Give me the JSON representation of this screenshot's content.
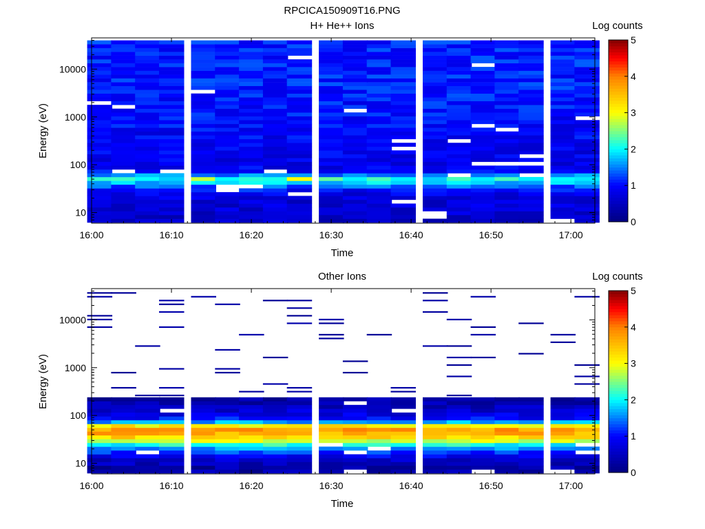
{
  "figure": {
    "title": "RPCICA150909T16.PNG"
  },
  "chart_data": [
    {
      "type": "heatmap",
      "title": "H+ He++ Ions",
      "xlabel": "Time",
      "ylabel": "Energy (eV)",
      "x_scale": "time",
      "y_scale": "log",
      "xlim": [
        "16:00",
        "17:03"
      ],
      "ylim": [
        6,
        45000
      ],
      "x_ticks": [
        "16:00",
        "16:10",
        "16:20",
        "16:30",
        "16:40",
        "16:50",
        "17:00"
      ],
      "y_ticks": [
        "10",
        "100",
        "1000",
        "10000"
      ],
      "time_bins": [
        "16:01",
        "16:04",
        "16:07",
        "16:10",
        "16:14",
        "16:17",
        "16:20",
        "16:23",
        "16:26",
        "16:30",
        "16:33",
        "16:36",
        "16:39",
        "16:43",
        "16:46",
        "16:49",
        "16:52",
        "16:55",
        "16:59",
        "17:02"
      ],
      "energy_profile": [
        {
          "energy": 8,
          "log_counts": 0.6
        },
        {
          "energy": 12,
          "log_counts": 0.7
        },
        {
          "energy": 17,
          "log_counts": 0.7
        },
        {
          "energy": 24,
          "log_counts": 0.8
        },
        {
          "energy": 32,
          "log_counts": 1.1
        },
        {
          "energy": 42,
          "log_counts": 1.8
        },
        {
          "energy": 52,
          "log_counts": 2.1
        },
        {
          "energy": 70,
          "log_counts": 1.0
        },
        {
          "energy": 100,
          "log_counts": 0.8
        },
        {
          "energy": 300,
          "log_counts": 0.9
        },
        {
          "energy": 1000,
          "log_counts": 1.0
        },
        {
          "energy": 5000,
          "log_counts": 1.1
        },
        {
          "energy": 20000,
          "log_counts": 1.1
        },
        {
          "energy": 40000,
          "log_counts": 1.1
        }
      ],
      "highlights": [
        {
          "time": "16:13",
          "energy": 52,
          "log_counts": 2.8
        },
        {
          "time": "16:26",
          "energy": 52,
          "log_counts": 3.0
        },
        {
          "time": "16:30",
          "energy": 52,
          "log_counts": 2.4
        }
      ],
      "colorbar": {
        "label": "Log counts",
        "range": [
          0,
          5
        ],
        "ticks": [
          "0",
          "1",
          "2",
          "3",
          "4",
          "5"
        ]
      }
    },
    {
      "type": "heatmap",
      "title": "Other Ions",
      "xlabel": "Time",
      "ylabel": "Energy (eV)",
      "x_scale": "time",
      "y_scale": "log",
      "xlim": [
        "16:00",
        "17:03"
      ],
      "ylim": [
        6,
        45000
      ],
      "x_ticks": [
        "16:00",
        "16:10",
        "16:20",
        "16:30",
        "16:40",
        "16:50",
        "17:00"
      ],
      "y_ticks": [
        "10",
        "100",
        "1000",
        "10000"
      ],
      "time_bins": [
        "16:01",
        "16:04",
        "16:07",
        "16:10",
        "16:14",
        "16:17",
        "16:20",
        "16:23",
        "16:26",
        "16:30",
        "16:33",
        "16:36",
        "16:39",
        "16:43",
        "16:46",
        "16:49",
        "16:52",
        "16:55",
        "16:59",
        "17:02"
      ],
      "energy_profile": [
        {
          "energy": 8,
          "log_counts": 0.3
        },
        {
          "energy": 12,
          "log_counts": 0.6
        },
        {
          "energy": 17,
          "log_counts": 1.2
        },
        {
          "energy": 24,
          "log_counts": 2.0
        },
        {
          "energy": 30,
          "log_counts": 2.9
        },
        {
          "energy": 38,
          "log_counts": 3.5
        },
        {
          "energy": 48,
          "log_counts": 3.8
        },
        {
          "energy": 58,
          "log_counts": 3.6
        },
        {
          "energy": 70,
          "log_counts": 1.8
        },
        {
          "energy": 90,
          "log_counts": 0.9
        },
        {
          "energy": 130,
          "log_counts": 0.6
        },
        {
          "energy": 200,
          "log_counts": 0.3
        },
        {
          "energy": 300,
          "log_counts": 0.1
        }
      ],
      "colorbar": {
        "label": "Log counts",
        "range": [
          0,
          5
        ],
        "ticks": [
          "0",
          "1",
          "2",
          "3",
          "4",
          "5"
        ]
      }
    }
  ]
}
